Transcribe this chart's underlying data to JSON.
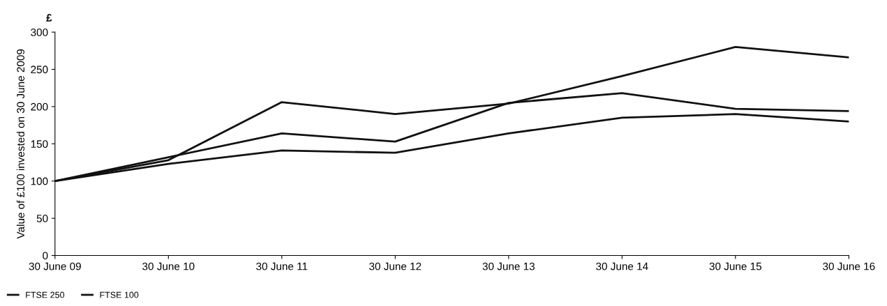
{
  "chart_data": {
    "type": "line",
    "ylabel": "Value of £100 invested on 30 June 2009",
    "annotations": [
      "£"
    ],
    "categories": [
      "30 June 09",
      "30 June 10",
      "30 June 11",
      "30 June 12",
      "30 June 13",
      "30 June 14",
      "30 June 15",
      "30 June 16"
    ],
    "series": [
      {
        "color": "#111111",
        "values": [
          100,
          128,
          206,
          190,
          204,
          241,
          280,
          266
        ]
      },
      {
        "name": "FTSE 250",
        "color": "#111111",
        "values": [
          100,
          132,
          164,
          153,
          205,
          218,
          197,
          194
        ]
      },
      {
        "name": "FTSE 100",
        "color": "#111111",
        "values": [
          100,
          123,
          141,
          138,
          164,
          185,
          190,
          180
        ]
      }
    ],
    "ylim": [
      0,
      300
    ],
    "yticks": [
      0,
      50,
      100,
      150,
      200,
      250,
      300
    ],
    "grid": false,
    "legend": "bottom left",
    "marker": "none",
    "line_style": "solid"
  }
}
